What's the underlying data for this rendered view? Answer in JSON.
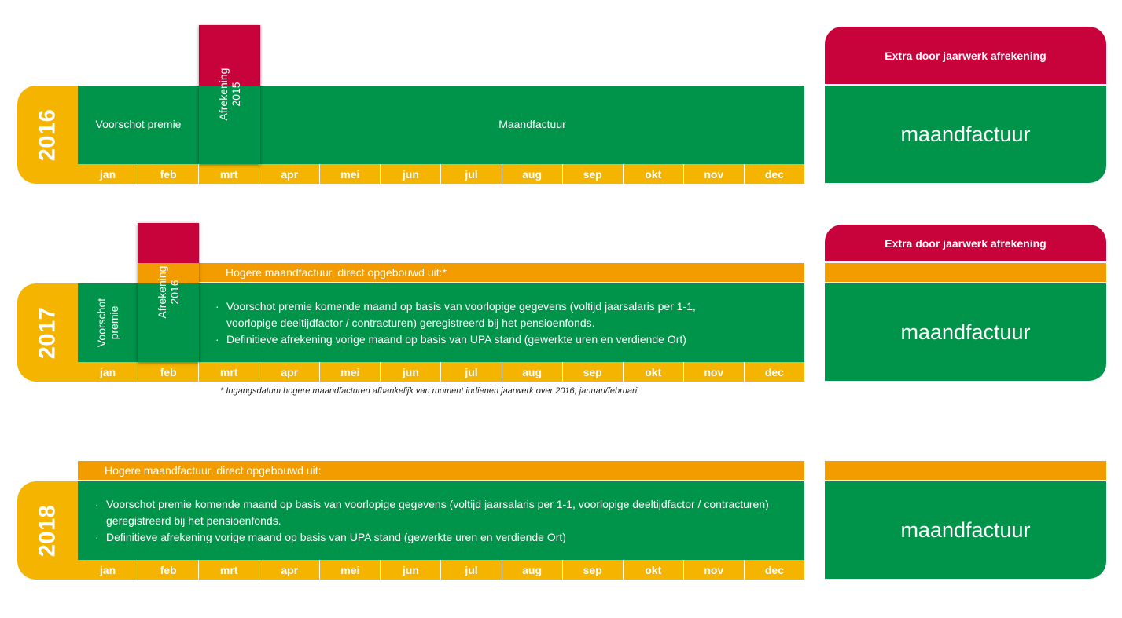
{
  "months": [
    "jan",
    "feb",
    "mrt",
    "apr",
    "mei",
    "jun",
    "jul",
    "aug",
    "sep",
    "okt",
    "nov",
    "dec"
  ],
  "rows": [
    {
      "year": "2016",
      "voorschot_label": "Voorschot premie",
      "afrekening_label": "Afrekening\n2015",
      "main_label": "Maandfactuur"
    },
    {
      "year": "2017",
      "voorschot_label": "Voorschot\npremie",
      "afrekening_label": "Afrekening\n2016",
      "orange_label": "Hogere maandfactuur, direct opgebouwd uit:*",
      "bullets": [
        "Voorschot premie komende maand op basis van voorlopige gegevens (voltijd jaarsalaris per 1-1,\nvoorlopige deeltijdfactor / contracturen) geregistreerd bij het pensioenfonds.",
        "Definitieve afrekening vorige maand op basis van UPA stand (gewerkte uren en verdiende Ort)"
      ],
      "footnote": "* Ingangsdatum hogere maandfacturen afhankelijk van moment indienen jaarwerk over 2016; januari/februari"
    },
    {
      "year": "2018",
      "orange_label": "Hogere maandfactuur, direct opgebouwd uit:",
      "bullets": [
        "Voorschot premie komende maand op basis van voorlopige gegevens (voltijd jaarsalaris per 1-1, voorlopige deeltijdfactor / contracturen)\ngeregistreerd bij het pensioenfonds.",
        "Definitieve afrekening vorige maand op basis van UPA stand (gewerkte uren en verdiende Ort)"
      ]
    }
  ],
  "right_panels": {
    "extra_label": "Extra door jaarwerk afrekening",
    "maandfactuur_label": "maandfactuur"
  },
  "colors": {
    "green": "#00934a",
    "orange": "#f39c00",
    "yellow": "#f5b400",
    "red": "#c8023b"
  }
}
